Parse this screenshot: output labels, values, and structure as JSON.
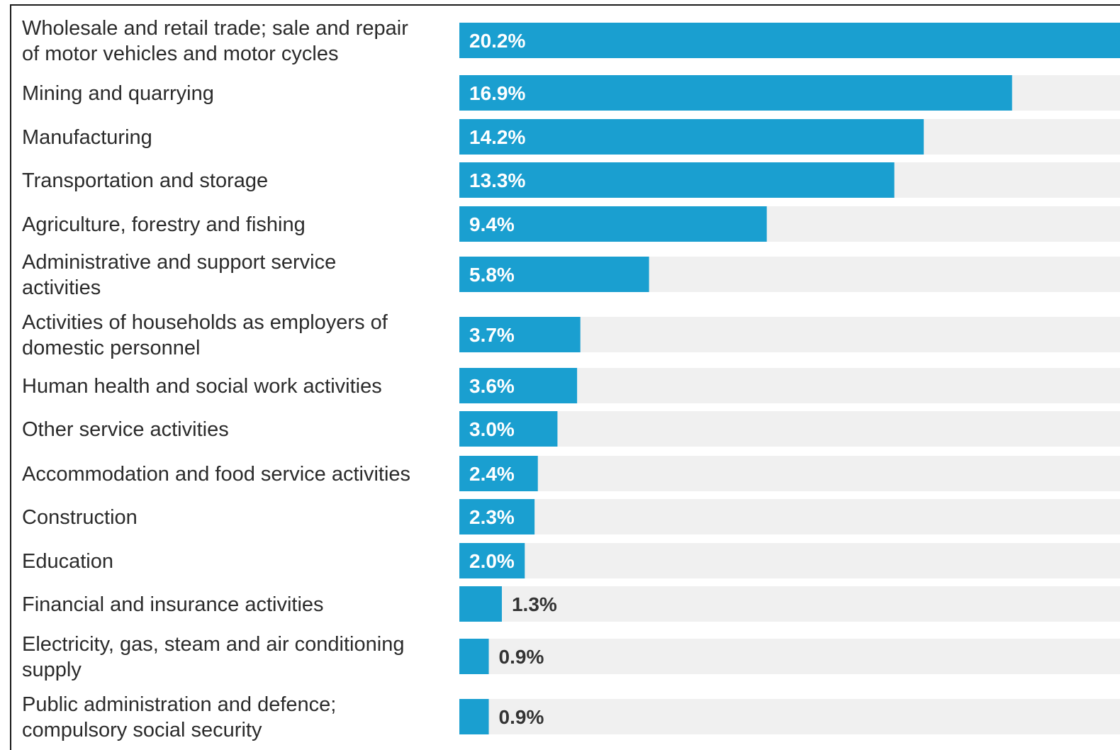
{
  "chart_data": {
    "type": "bar",
    "orientation": "horizontal",
    "categories": [
      "Wholesale and retail trade; sale and repair of motor vehicles and motor cycles",
      "Mining and quarrying",
      "Manufacturing",
      "Transportation and storage",
      "Agriculture, forestry and fishing",
      "Administrative and support service activities",
      "Activities of households as employers of domestic personnel",
      "Human health and social work activities",
      "Other service activities",
      "Accommodation and food service activities",
      "Construction",
      "Education",
      "Financial and insurance activities",
      "Electricity, gas, steam and air conditioning supply",
      "Public administration and defence; compulsory social security"
    ],
    "category_lines": [
      [
        "Wholesale and retail trade; sale and repair",
        "of motor vehicles and motor cycles"
      ],
      [
        "Mining and quarrying"
      ],
      [
        "Manufacturing"
      ],
      [
        "Transportation and storage"
      ],
      [
        "Agriculture, forestry and fishing"
      ],
      [
        "Administrative and support service",
        "activities"
      ],
      [
        "Activities of households as employers of",
        "domestic personnel"
      ],
      [
        "Human health and social work activities"
      ],
      [
        "Other service activities"
      ],
      [
        "Accommodation and food service activities"
      ],
      [
        "Construction"
      ],
      [
        "Education"
      ],
      [
        "Financial and insurance activities"
      ],
      [
        "Electricity, gas, steam and air conditioning",
        "supply"
      ],
      [
        "Public administration and defence;",
        "compulsory social security"
      ]
    ],
    "values": [
      20.2,
      16.9,
      14.2,
      13.3,
      9.4,
      5.8,
      3.7,
      3.6,
      3.0,
      2.4,
      2.3,
      2.0,
      1.3,
      0.9,
      0.9
    ],
    "value_labels": [
      "20.2%",
      "16.9%",
      "14.2%",
      "13.3%",
      "9.4%",
      "5.8%",
      "3.7%",
      "3.6%",
      "3.0%",
      "2.4%",
      "2.3%",
      "2.0%",
      "1.3%",
      "0.9%",
      "0.9%"
    ],
    "unit": "%",
    "xlim": [
      0,
      20.2
    ],
    "grid": false,
    "legend": "none",
    "colors": {
      "bar": "#1a9fd0",
      "track": "#f0f0f0",
      "label_inside": "#ffffff",
      "label_outside": "#333333",
      "category_text": "#2b2b2b"
    }
  }
}
